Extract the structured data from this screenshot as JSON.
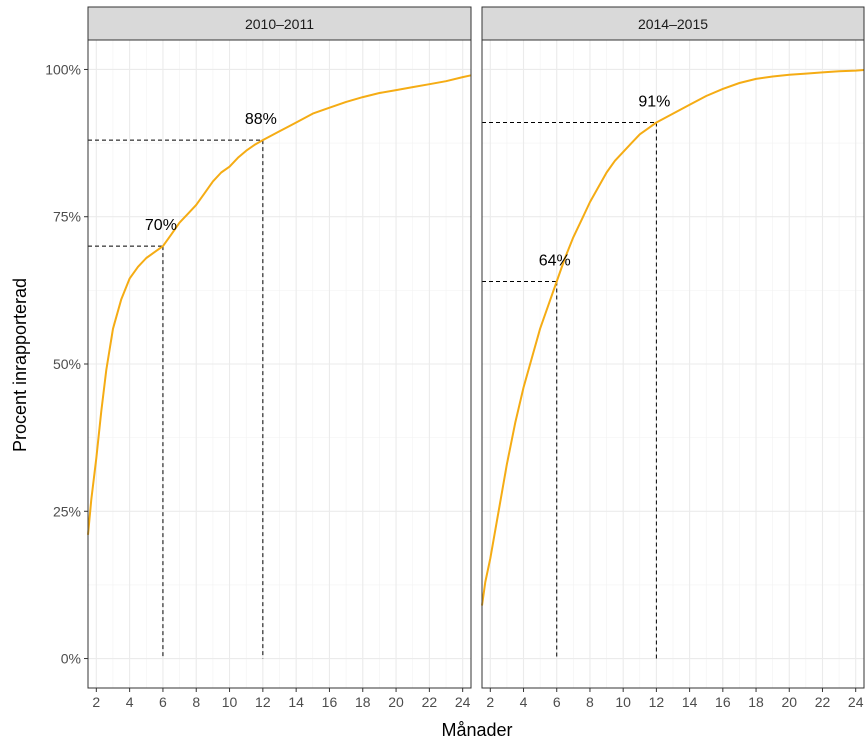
{
  "chart_data": {
    "type": "line",
    "xlabel": "Månader",
    "ylabel": "Procent inrapporterad",
    "xlim": [
      1.5,
      24.5
    ],
    "ylim": [
      -0.05,
      1.05
    ],
    "x_ticks": [
      2,
      4,
      6,
      8,
      10,
      12,
      14,
      16,
      18,
      20,
      22,
      24
    ],
    "y_ticks": [
      0,
      0.25,
      0.5,
      0.75,
      1.0
    ],
    "y_tick_labels": [
      "0%",
      "25%",
      "50%",
      "75%",
      "100%"
    ],
    "grid": true,
    "line_color": "#f5ac14",
    "panels": [
      {
        "strip": "2010–2011",
        "series": [
          {
            "x": [
              1.5,
              1.7,
              2.0,
              2.3,
              2.6,
              3.0,
              3.5,
              4.0,
              4.5,
              5.0,
              5.5,
              6.0,
              6.5,
              7.0,
              7.5,
              8.0,
              8.5,
              9.0,
              9.5,
              10.0,
              10.5,
              11.0,
              11.5,
              12.0,
              13.0,
              14.0,
              15.0,
              16.0,
              17.0,
              18.0,
              19.0,
              20.0,
              21.0,
              22.0,
              23.0,
              24.0,
              24.5
            ],
            "y": [
              0.21,
              0.27,
              0.34,
              0.42,
              0.49,
              0.56,
              0.61,
              0.645,
              0.665,
              0.68,
              0.69,
              0.7,
              0.72,
              0.74,
              0.755,
              0.77,
              0.79,
              0.81,
              0.825,
              0.835,
              0.85,
              0.862,
              0.872,
              0.88,
              0.895,
              0.91,
              0.925,
              0.935,
              0.945,
              0.953,
              0.96,
              0.965,
              0.97,
              0.975,
              0.98,
              0.987,
              0.99
            ]
          }
        ],
        "annotations": [
          {
            "x": 6,
            "y": 0.7,
            "label": "70%"
          },
          {
            "x": 12,
            "y": 0.88,
            "label": "88%"
          }
        ]
      },
      {
        "strip": "2014–2015",
        "series": [
          {
            "x": [
              1.5,
              1.7,
              2.0,
              2.5,
              3.0,
              3.5,
              4.0,
              4.5,
              5.0,
              5.5,
              6.0,
              6.5,
              7.0,
              7.5,
              8.0,
              8.5,
              9.0,
              9.5,
              10.0,
              10.5,
              11.0,
              11.5,
              12.0,
              13.0,
              14.0,
              15.0,
              16.0,
              17.0,
              18.0,
              19.0,
              20.0,
              21.0,
              22.0,
              23.0,
              24.0,
              24.5
            ],
            "y": [
              0.09,
              0.13,
              0.17,
              0.25,
              0.33,
              0.4,
              0.46,
              0.51,
              0.56,
              0.6,
              0.64,
              0.68,
              0.715,
              0.745,
              0.775,
              0.8,
              0.825,
              0.845,
              0.86,
              0.875,
              0.89,
              0.9,
              0.91,
              0.925,
              0.94,
              0.955,
              0.967,
              0.977,
              0.984,
              0.988,
              0.991,
              0.993,
              0.995,
              0.997,
              0.998,
              0.999
            ]
          }
        ],
        "annotations": [
          {
            "x": 6,
            "y": 0.64,
            "label": "64%"
          },
          {
            "x": 12,
            "y": 0.91,
            "label": "91%"
          }
        ]
      }
    ]
  }
}
